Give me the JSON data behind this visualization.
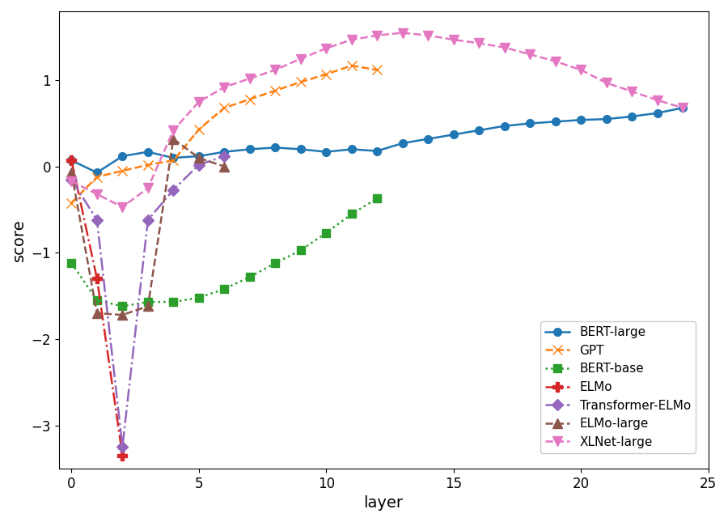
{
  "title": "",
  "xlabel": "layer",
  "ylabel": "score",
  "xlim": [
    -0.5,
    25
  ],
  "ylim": [
    -3.5,
    1.8
  ],
  "background_color": "#ffffff",
  "series": {
    "BERT-large": {
      "x": [
        0,
        1,
        2,
        3,
        4,
        5,
        6,
        7,
        8,
        9,
        10,
        11,
        12,
        13,
        14,
        15,
        16,
        17,
        18,
        19,
        20,
        21,
        22,
        23,
        24
      ],
      "y": [
        0.07,
        -0.07,
        0.12,
        0.17,
        0.1,
        0.12,
        0.17,
        0.2,
        0.22,
        0.2,
        0.17,
        0.2,
        0.18,
        0.27,
        0.32,
        0.37,
        0.42,
        0.47,
        0.5,
        0.52,
        0.54,
        0.55,
        0.58,
        0.62,
        0.68
      ],
      "color": "#1f77b4",
      "linestyle": "-",
      "marker": "o",
      "linewidth": 1.8,
      "markersize": 7
    },
    "GPT": {
      "x": [
        0,
        1,
        2,
        3,
        4,
        5,
        6,
        7,
        8,
        9,
        10,
        11,
        12
      ],
      "y": [
        -0.42,
        -0.12,
        -0.05,
        0.02,
        0.07,
        0.43,
        0.68,
        0.78,
        0.88,
        0.98,
        1.07,
        1.17,
        1.12
      ],
      "color": "#ff7f0e",
      "linestyle": "--",
      "marker": "x",
      "linewidth": 1.8,
      "markersize": 9
    },
    "BERT-base": {
      "x": [
        0,
        1,
        2,
        3,
        4,
        5,
        6,
        7,
        8,
        9,
        10,
        11,
        12
      ],
      "y": [
        -1.12,
        -1.55,
        -1.62,
        -1.57,
        -1.57,
        -1.52,
        -1.42,
        -1.28,
        -1.12,
        -0.97,
        -0.77,
        -0.55,
        -0.37
      ],
      "color": "#2ca02c",
      "linestyle": ":",
      "marker": "s",
      "linewidth": 1.8,
      "markersize": 7
    },
    "ELMo": {
      "x": [
        0,
        1,
        2
      ],
      "y": [
        0.07,
        -1.3,
        -3.35
      ],
      "color": "#d62728",
      "linestyle": "-.",
      "marker": "P",
      "linewidth": 1.8,
      "markersize": 8
    },
    "Transformer-ELMo": {
      "x": [
        0,
        1,
        2,
        3,
        4,
        5,
        6
      ],
      "y": [
        -0.15,
        -0.62,
        -3.25,
        -0.62,
        -0.27,
        0.02,
        0.12
      ],
      "color": "#9467bd",
      "linestyle": "-.",
      "marker": "D",
      "linewidth": 1.8,
      "markersize": 7
    },
    "ELMo-large": {
      "x": [
        0,
        1,
        2,
        3,
        4,
        5,
        6
      ],
      "y": [
        -0.07,
        -1.7,
        -1.72,
        -1.62,
        0.32,
        0.1,
        0.0
      ],
      "color": "#8c564b",
      "linestyle": "--",
      "marker": "^",
      "linewidth": 1.8,
      "markersize": 8
    },
    "XLNet-large": {
      "x": [
        0,
        1,
        2,
        3,
        4,
        5,
        6,
        7,
        8,
        9,
        10,
        11,
        12,
        13,
        14,
        15,
        16,
        17,
        18,
        19,
        20,
        21,
        22,
        23,
        24
      ],
      "y": [
        -0.17,
        -0.32,
        -0.47,
        -0.25,
        0.42,
        0.75,
        0.92,
        1.02,
        1.12,
        1.25,
        1.37,
        1.47,
        1.52,
        1.55,
        1.52,
        1.47,
        1.43,
        1.38,
        1.3,
        1.22,
        1.12,
        0.97,
        0.87,
        0.77,
        0.68
      ],
      "color": "#e377c2",
      "linestyle": "--",
      "marker": "v",
      "linewidth": 1.8,
      "markersize": 9
    }
  }
}
